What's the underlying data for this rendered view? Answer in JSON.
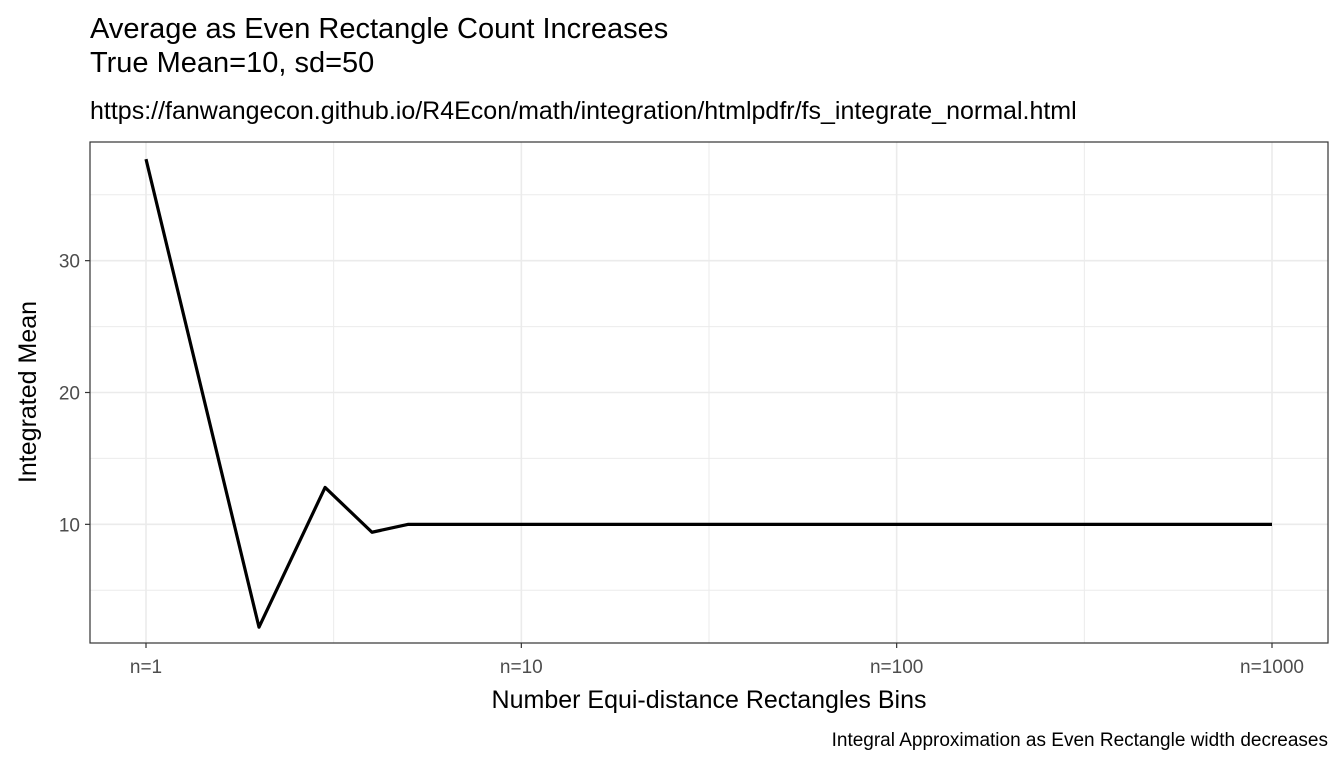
{
  "chart_data": {
    "type": "line",
    "title_line1": "Average as Even Rectangle Count Increases",
    "title_line2": "True Mean=10, sd=50",
    "subtitle": "https://fanwangecon.github.io/R4Econ/math/integration/htmlpdfr/fs_integrate_normal.html",
    "caption": "Integral Approximation as Even Rectangle width decreases",
    "xlabel": "Number Equi-distance Rectangles Bins",
    "ylabel": "Integrated Mean",
    "x_scale": "log10",
    "xlim": [
      1,
      1000
    ],
    "ylim": [
      1,
      39
    ],
    "x_ticks": [
      {
        "value": 1,
        "label": "n=1"
      },
      {
        "value": 10,
        "label": "n=10"
      },
      {
        "value": 100,
        "label": "n=100"
      },
      {
        "value": 1000,
        "label": "n=1000"
      }
    ],
    "y_ticks": [
      {
        "value": 10,
        "label": "10"
      },
      {
        "value": 20,
        "label": "20"
      },
      {
        "value": 30,
        "label": "30"
      }
    ],
    "grid": true,
    "line_color": "#000000",
    "series": [
      {
        "x": [
          1,
          2,
          3,
          4,
          5,
          10,
          20,
          50,
          100,
          200,
          500,
          1000
        ],
        "y": [
          37.7,
          2.2,
          12.8,
          9.4,
          10.0,
          10.0,
          10.0,
          10.0,
          10.0,
          10.0,
          10.0,
          10.0
        ]
      }
    ]
  }
}
